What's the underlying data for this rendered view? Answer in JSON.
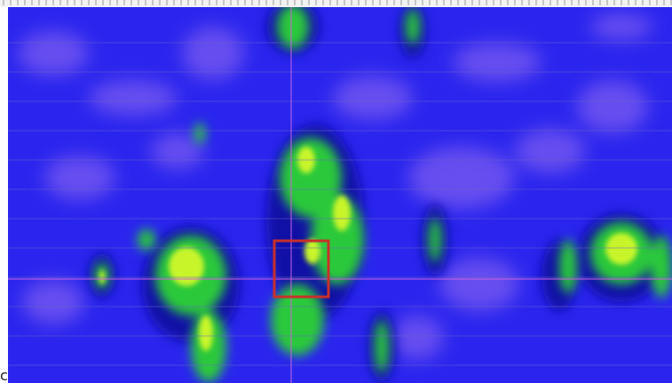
{
  "corner_label": "c"
}
